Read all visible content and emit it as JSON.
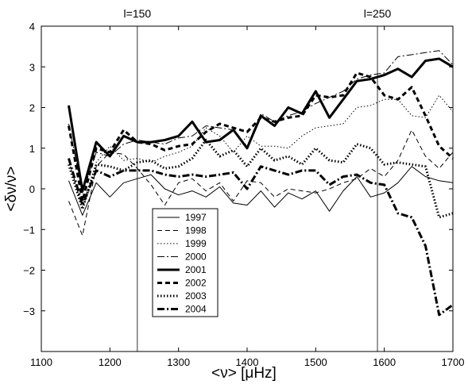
{
  "chart_data": {
    "type": "line",
    "title": "",
    "xlabel": "<ν> [μHz]",
    "ylabel": "<δν/ν>",
    "xlim": [
      1100,
      1700
    ],
    "ylim": [
      -4,
      4
    ],
    "xticks": [
      1100,
      1200,
      1300,
      1400,
      1500,
      1600,
      1700
    ],
    "yticks": [
      -3,
      -2,
      -1,
      0,
      1,
      2,
      3,
      4
    ],
    "grid": false,
    "legend_position": "lower-left",
    "annotations": [
      {
        "label": "l=150",
        "x": 1240
      },
      {
        "label": "l=250",
        "x": 1590
      }
    ],
    "x": [
      1140,
      1160,
      1180,
      1200,
      1220,
      1240,
      1260,
      1280,
      1300,
      1320,
      1340,
      1360,
      1380,
      1400,
      1420,
      1440,
      1460,
      1480,
      1500,
      1520,
      1540,
      1560,
      1580,
      1600,
      1620,
      1640,
      1660,
      1680,
      1700
    ],
    "series": [
      {
        "name": "1997",
        "values": [
          0.2,
          -0.65,
          0.15,
          -0.2,
          0.15,
          0.25,
          0.35,
          0.0,
          -0.15,
          -0.05,
          -0.2,
          0.05,
          -0.35,
          -0.4,
          -0.05,
          -0.45,
          -0.1,
          -0.25,
          -0.05,
          -0.55,
          -0.05,
          0.3,
          -0.2,
          -0.1,
          0.15,
          0.55,
          0.3,
          0.2,
          0.15
        ]
      },
      {
        "name": "1998",
        "values": [
          -0.3,
          -1.15,
          0.55,
          0.9,
          0.85,
          0.5,
          0.1,
          -0.4,
          0.15,
          0.25,
          -0.05,
          0.15,
          -0.3,
          0.2,
          0.15,
          -0.2,
          0.0,
          -0.05,
          -0.1,
          0.0,
          0.15,
          0.25,
          0.5,
          0.3,
          0.7,
          1.45,
          0.8,
          0.5,
          0.9
        ]
      },
      {
        "name": "1999",
        "values": [
          0.7,
          -0.45,
          0.65,
          1.05,
          0.7,
          0.75,
          0.65,
          0.8,
          0.9,
          1.05,
          1.5,
          1.3,
          0.9,
          1.3,
          1.05,
          1.05,
          1.0,
          1.3,
          1.5,
          1.55,
          1.6,
          2.0,
          2.05,
          2.2,
          2.2,
          1.8,
          1.75,
          2.3,
          1.9
        ]
      },
      {
        "name": "2000",
        "values": [
          1.6,
          -0.1,
          0.9,
          0.8,
          1.1,
          1.2,
          1.15,
          1.1,
          1.25,
          1.3,
          1.55,
          1.5,
          1.45,
          1.05,
          1.85,
          1.65,
          1.8,
          1.9,
          2.1,
          2.25,
          2.4,
          2.7,
          2.8,
          2.85,
          3.25,
          3.3,
          3.35,
          3.4,
          3.05
        ]
      },
      {
        "name": "2001",
        "values": [
          2.05,
          -0.05,
          1.15,
          0.8,
          1.3,
          1.15,
          1.15,
          1.2,
          1.3,
          1.65,
          1.15,
          1.2,
          1.45,
          1.0,
          1.8,
          1.55,
          2.0,
          1.85,
          2.4,
          1.75,
          2.2,
          2.65,
          2.7,
          2.8,
          2.95,
          2.75,
          3.15,
          3.2,
          3.0
        ]
      },
      {
        "name": "2002",
        "values": [
          1.55,
          -0.3,
          1.0,
          0.9,
          1.45,
          1.15,
          1.1,
          0.95,
          1.05,
          1.1,
          1.4,
          1.6,
          1.5,
          1.4,
          1.75,
          1.65,
          1.75,
          1.8,
          2.3,
          2.25,
          2.3,
          2.85,
          2.75,
          2.3,
          2.2,
          2.5,
          1.8,
          1.05,
          0.75
        ]
      },
      {
        "name": "2003",
        "values": [
          0.6,
          -0.5,
          0.6,
          0.55,
          0.45,
          0.65,
          0.7,
          0.5,
          0.55,
          0.75,
          1.2,
          0.8,
          0.95,
          0.55,
          1.0,
          0.7,
          0.8,
          0.6,
          1.0,
          0.7,
          0.65,
          1.1,
          1.0,
          0.6,
          0.65,
          0.6,
          0.55,
          -0.7,
          -0.6
        ]
      },
      {
        "name": "2004",
        "values": [
          0.75,
          -0.4,
          0.45,
          0.3,
          0.45,
          0.45,
          0.45,
          0.35,
          0.3,
          0.35,
          0.3,
          0.35,
          0.4,
          0.0,
          0.55,
          0.45,
          0.35,
          0.45,
          0.45,
          0.1,
          0.3,
          0.35,
          0.15,
          0.1,
          -0.6,
          -0.7,
          -1.4,
          -3.1,
          -2.85
        ]
      }
    ],
    "styles": [
      {
        "dash": "",
        "width": 1.0
      },
      {
        "dash": "6,4",
        "width": 1.0
      },
      {
        "dash": "1.5,2.5",
        "width": 1.0
      },
      {
        "dash": "9,3,2,3",
        "width": 1.0
      },
      {
        "dash": "",
        "width": 3.0
      },
      {
        "dash": "6,4",
        "width": 3.0
      },
      {
        "dash": "1.5,2.5",
        "width": 3.0
      },
      {
        "dash": "9,3,2,3",
        "width": 3.0
      }
    ],
    "line_color": "#000000"
  }
}
